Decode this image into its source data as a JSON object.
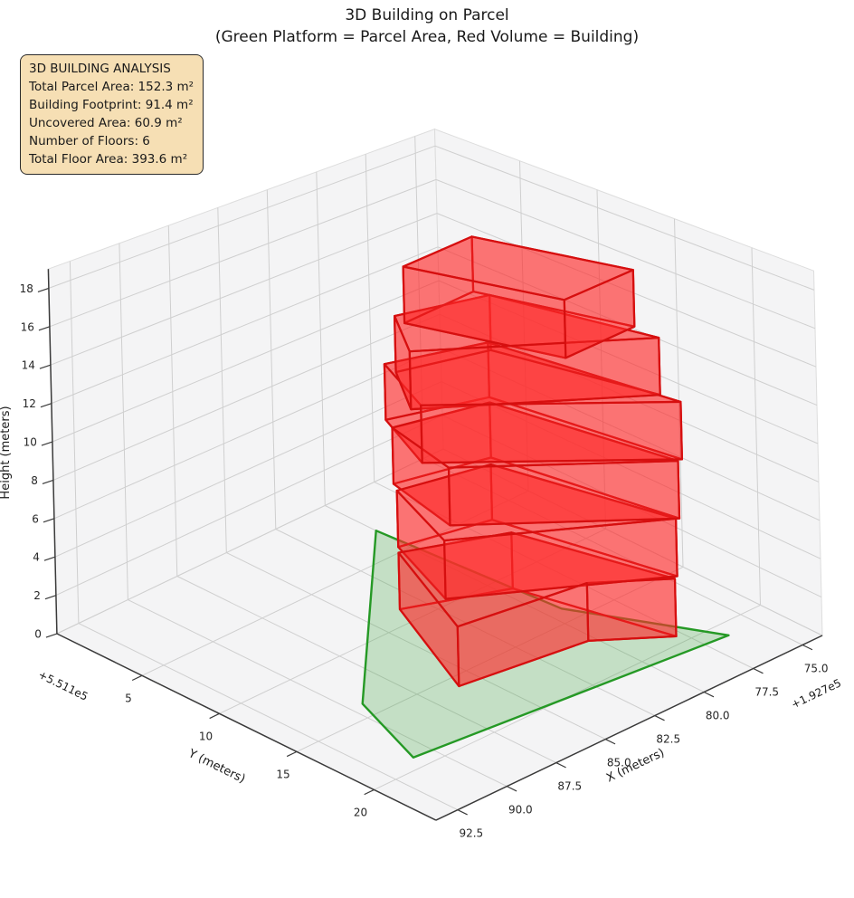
{
  "title": {
    "line1": "3D Building on Parcel",
    "line2": "(Green Platform = Parcel Area, Red Volume = Building)"
  },
  "info_box": {
    "title": "3D BUILDING ANALYSIS",
    "lines": [
      "Total Parcel Area: 152.3 m²",
      "Building Footprint: 91.4 m²",
      "Uncovered Area: 60.9 m²",
      "Number of Floors: 6",
      "Total Floor Area: 393.6 m²"
    ],
    "bg_color": "#f6dfb4",
    "border_color": "#2b2b2b"
  },
  "chart_data": {
    "type": "3d-building",
    "title": "3D Building on Parcel",
    "subtitle": "(Green Platform = Parcel Area, Red Volume = Building)",
    "stats": {
      "total_parcel_area_m2": 152.3,
      "building_footprint_m2": 91.4,
      "uncovered_area_m2": 60.9,
      "number_of_floors": 6,
      "total_floor_area_m2": 393.6
    },
    "axes": {
      "x": {
        "label": "X (meters)",
        "offset_text": "+1.927e5",
        "ticks": [
          75.0,
          77.5,
          80.0,
          82.5,
          85.0,
          87.5,
          90.0,
          92.5
        ],
        "range": [
          74,
          93.6
        ]
      },
      "y": {
        "label": "Y (meters)",
        "offset_text": "+5.511e5",
        "ticks": [
          5,
          10,
          15,
          20
        ],
        "range": [
          -0.5,
          24
        ]
      },
      "z": {
        "label": "Height (meters)",
        "ticks": [
          0,
          2,
          4,
          6,
          8,
          10,
          12,
          14,
          16,
          18
        ],
        "range": [
          0,
          19
        ]
      }
    },
    "grid": {
      "on": true,
      "pane_color": "#f4f4f5",
      "grid_color": "#cfcfcf",
      "spine_color": "#3a3a3a"
    },
    "parcel": {
      "fill_color": "#2ca02c",
      "edge_color": "#259925",
      "fill_opacity": 0.24,
      "edge_width": 2.4,
      "polygon_xy": [
        [
          80.0,
          2.8
        ],
        [
          79.3,
          13.9
        ],
        [
          76.4,
          21.0
        ],
        [
          90.9,
          19.1
        ],
        [
          89.4,
          13.9
        ]
      ]
    },
    "building": {
      "fill_color": "#ff2a2a",
      "edge_color": "#d60f0f",
      "fill_opacity": 0.4,
      "edge_width": 2.2,
      "floor_height_m": 3,
      "floors": [
        {
          "level": 1,
          "z": [
            0,
            3
          ],
          "footprint_xy": [
            [
              83.5,
              8.8
            ],
            [
              86.0,
              15.8
            ],
            [
              80.3,
              16.9
            ],
            [
              77.8,
              19.4
            ],
            [
              79.5,
              11.0
            ]
          ]
        },
        {
          "level": 2,
          "z": [
            3,
            6
          ],
          "footprint_xy": [
            [
              83.2,
              8.4
            ],
            [
              84.8,
              13.5
            ],
            [
              77.6,
              19.3
            ],
            [
              79.3,
              9.5
            ]
          ]
        },
        {
          "level": 3,
          "z": [
            6,
            9
          ],
          "footprint_xy": [
            [
              82.9,
              7.8
            ],
            [
              83.8,
              12.6
            ],
            [
              77.5,
              19.4
            ],
            [
              78.9,
              9.0
            ]
          ]
        },
        {
          "level": 4,
          "z": [
            9,
            12
          ],
          "footprint_xy": [
            [
              82.6,
              7.0
            ],
            [
              84.2,
              11.4
            ],
            [
              77.3,
              19.4
            ],
            [
              78.6,
              8.6
            ]
          ]
        },
        {
          "level": 5,
          "z": [
            12,
            15
          ],
          "footprint_xy": [
            [
              82.8,
              8.0
            ],
            [
              84.7,
              11.4
            ],
            [
              77.4,
              18.2
            ],
            [
              79.0,
              9.3
            ]
          ]
        },
        {
          "level": 6,
          "z": [
            15,
            18
          ],
          "footprint_xy": [
            [
              83.0,
              8.9
            ],
            [
              79.2,
              8.5
            ],
            [
              77.3,
              16.5
            ],
            [
              81.1,
              16.9
            ]
          ]
        }
      ]
    }
  }
}
